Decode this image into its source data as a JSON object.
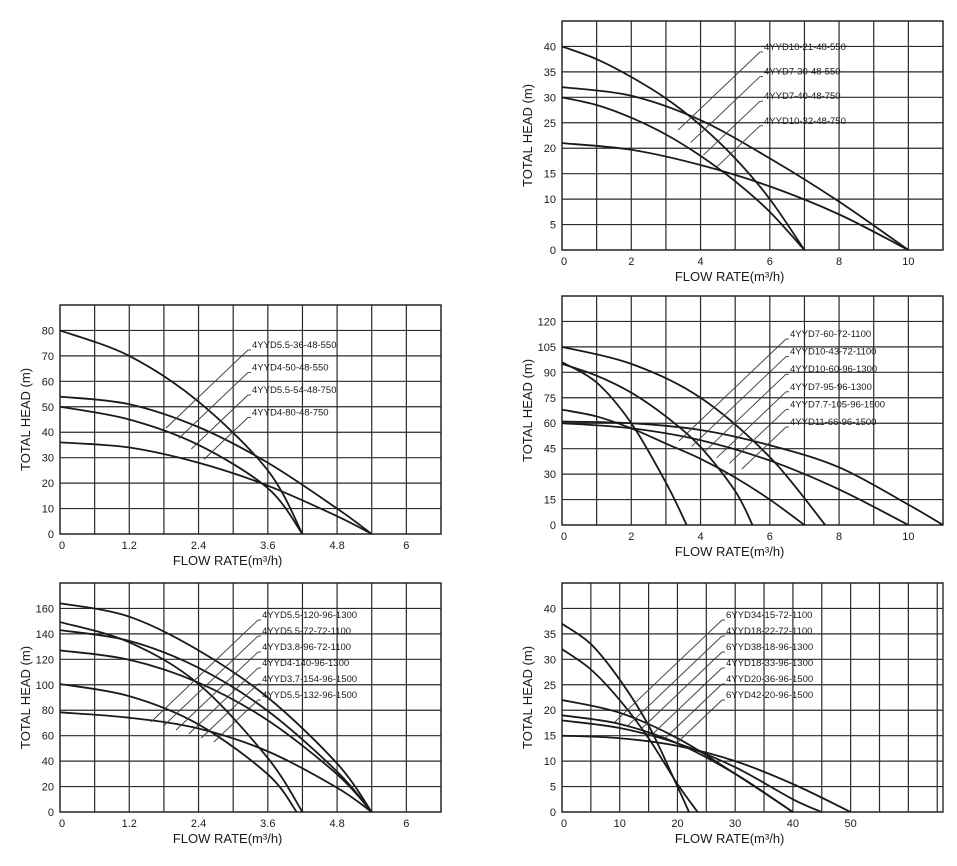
{
  "chart_data": [
    {
      "type": "line",
      "xlabel": "FLOW RATE(m³/h)",
      "ylabel": "TOTAL HEAD  (m)",
      "xticks": [
        "0",
        "2",
        "4",
        "6",
        "8",
        "10"
      ],
      "xtick_values": [
        0,
        2,
        4,
        6,
        8,
        10
      ],
      "yticks": [
        "0",
        "5",
        "10",
        "15",
        "20",
        "25",
        "30",
        "35",
        "40"
      ],
      "xlim": [
        0,
        11
      ],
      "ylim": [
        0,
        45
      ],
      "grid": true,
      "legend_position": "top-right",
      "series": [
        {
          "name": "4YYD10-21-48-550",
          "x": [
            0,
            2,
            4,
            6,
            8,
            10
          ],
          "y": [
            21,
            19.7,
            16.7,
            12.5,
            7,
            0
          ]
        },
        {
          "name": "4YYD7-30-48-550",
          "x": [
            0,
            1,
            2,
            3,
            4,
            5,
            6,
            7
          ],
          "y": [
            30,
            28.5,
            26,
            22.7,
            18.5,
            13.5,
            7.5,
            0
          ]
        },
        {
          "name": "4YYD7-40-48-750",
          "x": [
            0,
            1,
            2,
            3,
            4,
            5,
            6,
            7
          ],
          "y": [
            40,
            37.5,
            34,
            29.8,
            24.5,
            18,
            10,
            0
          ]
        },
        {
          "name": "4YYD10-32-48-750",
          "x": [
            0,
            2,
            4,
            6,
            8,
            10
          ],
          "y": [
            32,
            30.3,
            25.5,
            18,
            9.5,
            0
          ]
        }
      ]
    },
    {
      "type": "line",
      "xlabel": "FLOW RATE(m³/h)",
      "ylabel": "TOTAL HEAD  (m)",
      "xticks": [
        "0",
        "1.2",
        "2.4",
        "3.6",
        "4.8",
        "6"
      ],
      "xtick_values": [
        0,
        1.2,
        2.4,
        3.6,
        4.8,
        6
      ],
      "yticks": [
        "0",
        "10",
        "20",
        "30",
        "40",
        "50",
        "60",
        "70",
        "80"
      ],
      "xlim": [
        0,
        6.6
      ],
      "ylim": [
        0,
        90
      ],
      "grid": true,
      "legend_position": "top-right",
      "series": [
        {
          "name": "4YYD5.5-36-48-550",
          "x": [
            0,
            1.2,
            2.4,
            3.6,
            4.8,
            5.4
          ],
          "y": [
            36,
            34,
            28,
            19,
            7,
            0
          ]
        },
        {
          "name": "4YYD4-50-48-550",
          "x": [
            0,
            1.2,
            2.4,
            3.6,
            4.2
          ],
          "y": [
            50,
            45,
            35,
            18,
            0
          ]
        },
        {
          "name": "4YYD5.5-54-48-750",
          "x": [
            0,
            1.2,
            2.4,
            3.6,
            4.8,
            5.4
          ],
          "y": [
            54,
            51,
            42,
            28,
            10,
            0
          ]
        },
        {
          "name": "4YYD4-80-48-750",
          "x": [
            0,
            1.2,
            2.4,
            3.6,
            4.2
          ],
          "y": [
            80,
            70,
            52,
            25,
            0
          ]
        }
      ]
    },
    {
      "type": "line",
      "xlabel": "FLOW RATE(m³/h)",
      "ylabel": "TOTAL HEAD  (m)",
      "xticks": [
        "0",
        "2",
        "4",
        "6",
        "8",
        "10"
      ],
      "xtick_values": [
        0,
        2,
        4,
        6,
        8,
        10
      ],
      "yticks": [
        "0",
        "15",
        "30",
        "45",
        "60",
        "75",
        "90",
        "105",
        "120"
      ],
      "xlim": [
        0,
        11
      ],
      "ylim": [
        0,
        135
      ],
      "grid": true,
      "legend_position": "top-right",
      "series": [
        {
          "name": "4YYD7-60-72-1100",
          "x": [
            0,
            1,
            2,
            3,
            4,
            5,
            6,
            7
          ],
          "y": [
            68,
            64,
            57,
            48,
            39,
            28,
            15,
            0
          ]
        },
        {
          "name": "4YYD10-43-72-1100",
          "x": [
            0,
            2,
            4,
            6,
            8,
            10
          ],
          "y": [
            60,
            57,
            50,
            38,
            21,
            0
          ]
        },
        {
          "name": "4YYD10-60-96-1300",
          "x": [
            0,
            2,
            4,
            6,
            8,
            10,
            11
          ],
          "y": [
            61,
            60,
            56,
            47,
            34,
            12,
            0
          ]
        },
        {
          "name": "4YYD7-95-96-1300",
          "x": [
            0,
            1,
            2,
            3,
            4,
            5,
            5.5
          ],
          "y": [
            95,
            88,
            78,
            64,
            46,
            20,
            0
          ]
        },
        {
          "name": "4YYD7.7-105-96-1500",
          "x": [
            0,
            2,
            4,
            6,
            7.6
          ],
          "y": [
            105,
            95,
            75,
            40,
            0
          ]
        },
        {
          "name": "4YYD11-66-96-1500",
          "x": [
            0,
            1,
            2,
            3,
            3.6
          ],
          "y": [
            96,
            84,
            60,
            25,
            0
          ]
        }
      ]
    },
    {
      "type": "line",
      "xlabel": "FLOW RATE(m³/h)",
      "ylabel": "TOTAL HEAD  (m)",
      "xticks": [
        "0",
        "1.2",
        "2.4",
        "3.6",
        "4.8",
        "6"
      ],
      "xtick_values": [
        0,
        1.2,
        2.4,
        3.6,
        4.8,
        6
      ],
      "yticks": [
        "0",
        "20",
        "40",
        "60",
        "80",
        "100",
        "120",
        "140",
        "160"
      ],
      "xlim": [
        0,
        6.6
      ],
      "ylim": [
        0,
        170
      ],
      "grid": true,
      "legend_position": "top-right",
      "series": [
        {
          "name": "4YYD5.5-120-96-1300",
          "x": [
            0,
            1.2,
            2.4,
            3.6,
            4.8,
            5.4
          ],
          "y": [
            120,
            113,
            96,
            68,
            28,
            0
          ]
        },
        {
          "name": "4YYD5.5-72-72-1100",
          "x": [
            0,
            1.2,
            2.4,
            3.6,
            4.8,
            5.4
          ],
          "y": [
            74,
            70,
            62,
            45,
            18,
            0
          ]
        },
        {
          "name": "4YYD3.8-96-72-1100",
          "x": [
            0,
            1.2,
            2.4,
            3.6,
            4.1
          ],
          "y": [
            95,
            86,
            65,
            28,
            0
          ]
        },
        {
          "name": "4YYD4-140-96-1300",
          "x": [
            0,
            1.2,
            2.4,
            3.6,
            4.2
          ],
          "y": [
            141,
            126,
            95,
            40,
            0
          ]
        },
        {
          "name": "4YYD3.7-154-96-1500",
          "x": [
            0,
            1.2,
            2.4,
            3.6,
            4.8,
            5.4
          ],
          "y": [
            135,
            127,
            107,
            75,
            30,
            0
          ]
        },
        {
          "name": "4YYD5.5-132-96-1500",
          "x": [
            0,
            1.2,
            2.4,
            3.6,
            4.8,
            5.4
          ],
          "y": [
            155,
            145,
            120,
            85,
            36,
            0
          ]
        }
      ]
    },
    {
      "type": "line",
      "xlabel": "FLOW RATE(m³/h)",
      "ylabel": "TOTAL HEAD  (m)",
      "xticks": [
        "0",
        "10",
        "20",
        "30",
        "40",
        "50"
      ],
      "xtick_values": [
        0,
        10,
        20,
        30,
        40,
        50
      ],
      "yticks": [
        "0",
        "5",
        "10",
        "15",
        "20",
        "25",
        "30",
        "35",
        "40"
      ],
      "xlim": [
        0,
        66
      ],
      "ylim": [
        0,
        45
      ],
      "grid": true,
      "legend_position": "top-right",
      "series": [
        {
          "name": "6YYD34-15-72-1100",
          "x": [
            0,
            10,
            20,
            30,
            40,
            50
          ],
          "y": [
            15,
            14.5,
            13,
            10,
            5.5,
            0
          ]
        },
        {
          "name": "4YYD18-22-72-1100",
          "x": [
            0,
            5,
            10,
            15,
            20,
            22
          ],
          "y": [
            37,
            33,
            26,
            17,
            5,
            0
          ]
        },
        {
          "name": "6YYD38-18-96-1300",
          "x": [
            0,
            10,
            20,
            30,
            40,
            45
          ],
          "y": [
            18,
            16.5,
            13.5,
            8.8,
            2.5,
            0
          ]
        },
        {
          "name": "4YYD18-33-96-1300",
          "x": [
            0,
            5,
            10,
            15,
            20,
            23.5
          ],
          "y": [
            32,
            28,
            22,
            14.5,
            5.5,
            0
          ]
        },
        {
          "name": "4YYD20-36-96-1500",
          "x": [
            0,
            10,
            20,
            30,
            40
          ],
          "y": [
            19,
            17.3,
            13.5,
            7.5,
            0
          ]
        },
        {
          "name": "6YYD42-20-96-1500",
          "x": [
            0,
            10,
            20,
            30,
            40
          ],
          "y": [
            22,
            19.5,
            14.5,
            7.5,
            0
          ]
        }
      ]
    }
  ]
}
